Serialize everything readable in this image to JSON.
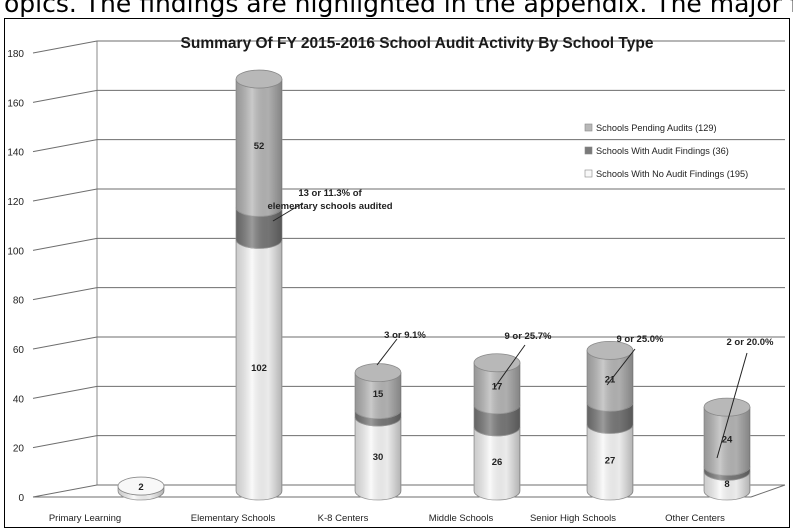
{
  "header_text": "opics. The findings are highlighted in the appendix. The major findings and recommendations are",
  "chart_data": {
    "type": "bar",
    "stacked": true,
    "three_d": true,
    "title": "Summary Of FY 2015-2016 School Audit Activity By School Type",
    "xlabel": "",
    "ylabel": "",
    "ylim": [
      0,
      180
    ],
    "yticks": [
      0,
      20,
      40,
      60,
      80,
      100,
      120,
      140,
      160,
      180
    ],
    "grid": true,
    "legend_position": "right",
    "categories": [
      "Primary Learning",
      "Elementary Schools",
      "K-8 Centers",
      "Middle Schools",
      "Senior High Schools",
      "Other Centers"
    ],
    "series": [
      {
        "name": "Schools With No Audit Findings (195)",
        "color": "#f8f8f8",
        "values": [
          2,
          102,
          30,
          26,
          27,
          8
        ],
        "labels": [
          "2",
          "102",
          "30",
          "26",
          "27",
          "8"
        ]
      },
      {
        "name": "Schools With Audit Findings (36)",
        "color": "#7a7a7a",
        "values": [
          0,
          13,
          3,
          9,
          9,
          2
        ],
        "labels": [
          "",
          "",
          "",
          "",
          "",
          ""
        ]
      },
      {
        "name": "Schools Pending Audits (129)",
        "color": "#b8b8b8",
        "values": [
          0,
          52,
          15,
          17,
          21,
          24
        ],
        "labels": [
          "",
          "52",
          "15",
          "17",
          "21",
          "24"
        ]
      }
    ],
    "legend_order": [
      2,
      1,
      0
    ],
    "annotations": [
      {
        "category": 1,
        "text": "13 or 11.3% of elementary schools audited"
      },
      {
        "category": 2,
        "text": "3 or 9.1%"
      },
      {
        "category": 3,
        "text": "9 or 25.7%"
      },
      {
        "category": 4,
        "text": "9 or 25.0%"
      },
      {
        "category": 5,
        "text": "2 or 20.0%"
      }
    ]
  }
}
